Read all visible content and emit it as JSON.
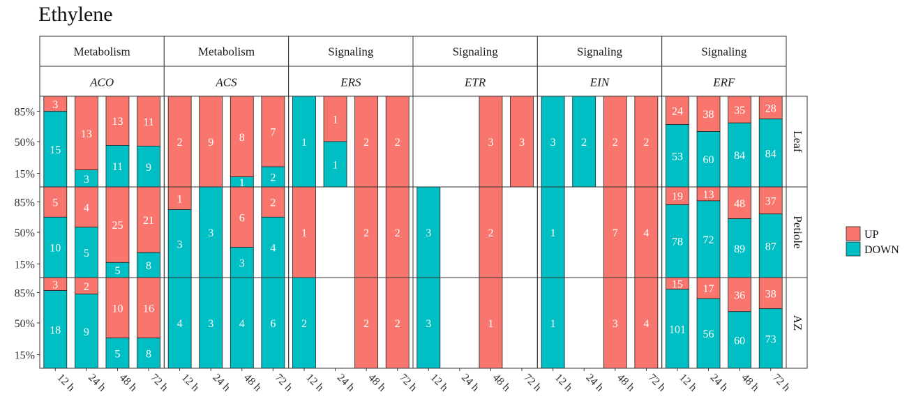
{
  "title": "Ethylene",
  "colors": {
    "up": "#F8766D",
    "down": "#00BFC4",
    "strip": "#FFFFFF",
    "border": "#333333"
  },
  "chart_data": {
    "type": "bar",
    "stacked": true,
    "normalized": true,
    "title": "Ethylene",
    "categories": [
      "12 h",
      "24 h",
      "48 h",
      "72 h"
    ],
    "y_ticks": [
      "85%",
      "50%",
      "15%"
    ],
    "y_tick_values": [
      0.85,
      0.5,
      0.15
    ],
    "rows": [
      "Leaf",
      "Petiole",
      "AZ"
    ],
    "legend": [
      {
        "key": "up",
        "label": "UP"
      },
      {
        "key": "down",
        "label": "DOWN"
      }
    ],
    "legend_position": "right",
    "panels": [
      {
        "category": "Metabolism",
        "gene": "ACO",
        "data": {
          "Leaf": {
            "up": [
              3,
              13,
              13,
              11
            ],
            "down": [
              15,
              3,
              11,
              9
            ]
          },
          "Petiole": {
            "up": [
              5,
              4,
              25,
              21
            ],
            "down": [
              10,
              5,
              5,
              8
            ]
          },
          "AZ": {
            "up": [
              3,
              2,
              10,
              16
            ],
            "down": [
              18,
              9,
              5,
              8
            ]
          }
        }
      },
      {
        "category": "Metabolism",
        "gene": "ACS",
        "data": {
          "Leaf": {
            "up": [
              2,
              9,
              8,
              7
            ],
            "down": [
              0,
              0,
              1,
              2
            ]
          },
          "Petiole": {
            "up": [
              1,
              0,
              6,
              2
            ],
            "down": [
              3,
              3,
              3,
              4
            ]
          },
          "AZ": {
            "up": [
              0,
              0,
              0,
              0
            ],
            "down": [
              4,
              3,
              4,
              6
            ]
          }
        }
      },
      {
        "category": "Signaling",
        "gene": "ERS",
        "data": {
          "Leaf": {
            "up": [
              0,
              1,
              2,
              2
            ],
            "down": [
              1,
              1,
              0,
              0
            ]
          },
          "Petiole": {
            "up": [
              1,
              0,
              2,
              2
            ],
            "down": [
              0,
              0,
              0,
              0
            ]
          },
          "AZ": {
            "up": [
              0,
              0,
              2,
              2
            ],
            "down": [
              2,
              0,
              0,
              0
            ]
          }
        }
      },
      {
        "category": "Signaling",
        "gene": "ETR",
        "data": {
          "Leaf": {
            "up": [
              0,
              0,
              3,
              3
            ],
            "down": [
              0,
              0,
              0,
              0
            ]
          },
          "Petiole": {
            "up": [
              0,
              0,
              2,
              0
            ],
            "down": [
              3,
              0,
              0,
              0
            ]
          },
          "AZ": {
            "up": [
              0,
              0,
              1,
              0
            ],
            "down": [
              3,
              0,
              0,
              0
            ]
          }
        }
      },
      {
        "category": "Signaling",
        "gene": "EIN",
        "data": {
          "Leaf": {
            "up": [
              0,
              0,
              2,
              2
            ],
            "down": [
              3,
              2,
              0,
              0
            ]
          },
          "Petiole": {
            "up": [
              0,
              0,
              7,
              4
            ],
            "down": [
              1,
              0,
              0,
              0
            ]
          },
          "AZ": {
            "up": [
              0,
              0,
              3,
              4
            ],
            "down": [
              1,
              0,
              0,
              0
            ]
          }
        }
      },
      {
        "category": "Signaling",
        "gene": "ERF",
        "data": {
          "Leaf": {
            "up": [
              24,
              38,
              35,
              28
            ],
            "down": [
              53,
              60,
              84,
              84
            ]
          },
          "Petiole": {
            "up": [
              19,
              13,
              48,
              37
            ],
            "down": [
              78,
              72,
              89,
              87
            ]
          },
          "AZ": {
            "up": [
              15,
              17,
              36,
              38
            ],
            "down": [
              101,
              56,
              60,
              73
            ]
          }
        }
      }
    ]
  }
}
